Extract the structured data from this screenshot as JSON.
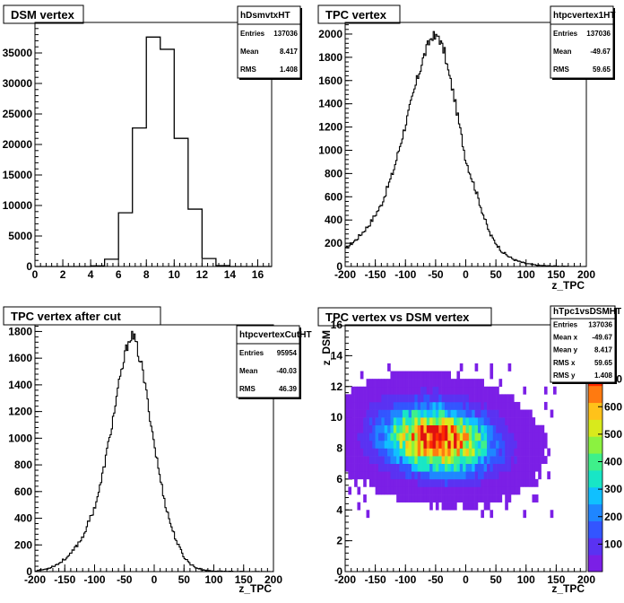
{
  "chart_data": [
    {
      "type": "bar",
      "title": "DSM vertex",
      "xlabel": "",
      "ylabel": "",
      "xlim": [
        0,
        17
      ],
      "ylim": [
        0,
        40000
      ],
      "xticks": [
        "0",
        "2",
        "4",
        "6",
        "8",
        "10",
        "12",
        "14",
        "16"
      ],
      "yticks": [
        "0",
        "5000",
        "10000",
        "15000",
        "20000",
        "25000",
        "30000",
        "35000"
      ],
      "bin_edges": [
        0,
        1,
        2,
        3,
        4,
        5,
        6,
        7,
        8,
        9,
        10,
        11,
        12,
        13,
        14,
        15,
        16,
        17
      ],
      "values": [
        0,
        0,
        0,
        0,
        100,
        1200,
        8800,
        22700,
        37600,
        35600,
        21000,
        9400,
        1300,
        150,
        0,
        0,
        0
      ],
      "stats": {
        "name": "hDsmvtxHT",
        "rows": [
          [
            "Entries",
            "137036"
          ],
          [
            "Mean",
            "8.417"
          ],
          [
            "RMS",
            "1.408"
          ]
        ]
      }
    },
    {
      "type": "line",
      "title": "TPC vertex",
      "xlabel": "z_TPC",
      "ylabel": "",
      "xlim": [
        -200,
        200
      ],
      "ylim": [
        0,
        2100
      ],
      "xticks": [
        "-200",
        "-150",
        "-100",
        "-50",
        "0",
        "50",
        "100",
        "150",
        "200"
      ],
      "yticks": [
        "0",
        "200",
        "400",
        "600",
        "800",
        "1000",
        "1200",
        "1400",
        "1600",
        "1800",
        "2000"
      ],
      "x": [
        -200,
        -180,
        -160,
        -140,
        -120,
        -100,
        -90,
        -80,
        -70,
        -60,
        -55,
        -50,
        -45,
        -40,
        -35,
        -30,
        -20,
        -10,
        0,
        10,
        20,
        30,
        40,
        50,
        60,
        70,
        80,
        90,
        100,
        120,
        140,
        160,
        180,
        200
      ],
      "y": [
        150,
        240,
        360,
        530,
        820,
        1220,
        1420,
        1620,
        1800,
        1940,
        1990,
        1960,
        1990,
        1900,
        1840,
        1700,
        1480,
        1200,
        920,
        760,
        600,
        430,
        280,
        200,
        130,
        90,
        60,
        40,
        25,
        10,
        5,
        2,
        0,
        0
      ],
      "stats": {
        "name": "htpcvertex1HT",
        "rows": [
          [
            "Entries",
            "137036"
          ],
          [
            "Mean",
            "-49.67"
          ],
          [
            "RMS",
            "59.65"
          ]
        ]
      }
    },
    {
      "type": "line",
      "title": "TPC vertex after cut",
      "xlabel": "z_TPC",
      "ylabel": "",
      "xlim": [
        -200,
        200
      ],
      "ylim": [
        0,
        1850
      ],
      "xticks": [
        "-200",
        "-150",
        "-100",
        "-50",
        "0",
        "50",
        "100",
        "150",
        "200"
      ],
      "yticks": [
        "0",
        "200",
        "400",
        "600",
        "800",
        "1000",
        "1200",
        "1400",
        "1600",
        "1800"
      ],
      "x": [
        -200,
        -180,
        -160,
        -140,
        -120,
        -100,
        -90,
        -80,
        -70,
        -60,
        -50,
        -45,
        -40,
        -35,
        -30,
        -20,
        -10,
        0,
        10,
        20,
        30,
        40,
        50,
        60,
        70,
        80,
        90,
        100,
        120,
        140,
        160,
        180,
        200
      ],
      "y": [
        5,
        20,
        60,
        130,
        260,
        480,
        650,
        880,
        1120,
        1380,
        1600,
        1700,
        1770,
        1760,
        1700,
        1520,
        1250,
        960,
        700,
        480,
        320,
        200,
        110,
        60,
        30,
        15,
        8,
        4,
        2,
        1,
        0,
        0,
        0
      ],
      "stats": {
        "name": "htpcvertexCutHT",
        "rows": [
          [
            "Entries",
            "95954"
          ],
          [
            "Mean",
            "-40.03"
          ],
          [
            "RMS",
            "46.39"
          ]
        ]
      }
    },
    {
      "type": "heatmap",
      "title": "TPC vertex vs DSM vertex",
      "xlabel": "z_TPC",
      "ylabel": "z_DSM",
      "xlim": [
        -200,
        200
      ],
      "ylim": [
        0,
        16
      ],
      "xticks": [
        "-200",
        "-150",
        "-100",
        "-50",
        "0",
        "50",
        "100",
        "150",
        "200"
      ],
      "yticks": [
        "0",
        "2",
        "4",
        "6",
        "8",
        "10",
        "12",
        "14",
        "16"
      ],
      "zticks": [
        "100",
        "200",
        "300",
        "400",
        "500",
        "600",
        "700"
      ],
      "zmax": 800,
      "peak": {
        "x": -45,
        "y": 8.8
      },
      "stats": {
        "name": "hTpc1vsDSMHT",
        "rows": [
          [
            "Entries",
            "137036"
          ],
          [
            "Mean x",
            "-49.67"
          ],
          [
            "Mean y",
            "8.417"
          ],
          [
            "RMS x",
            "59.65"
          ],
          [
            "RMS y",
            "1.408"
          ]
        ]
      }
    }
  ]
}
